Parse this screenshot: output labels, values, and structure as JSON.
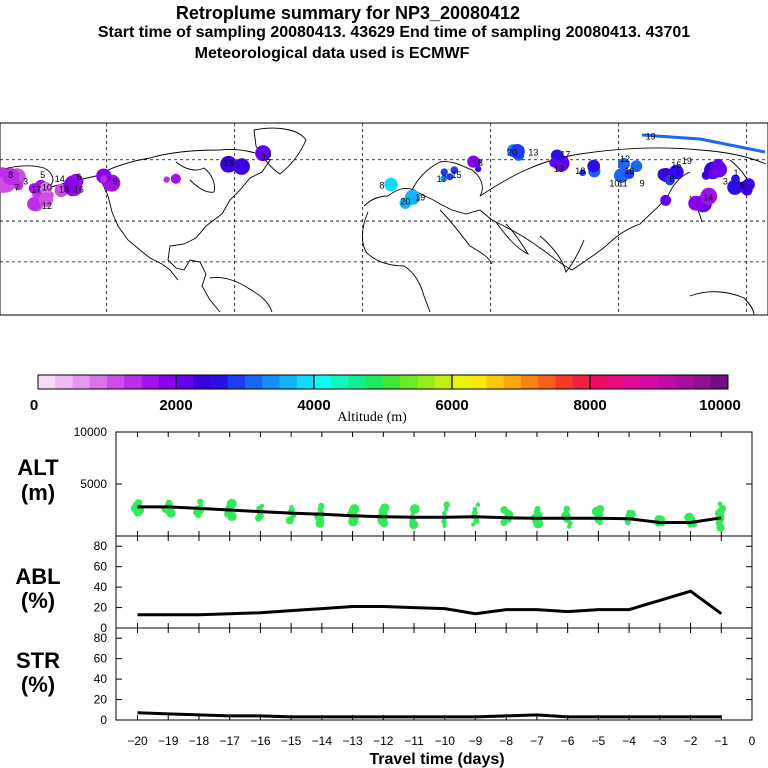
{
  "header": {
    "title": "Retroplume summary for NP3_20080412",
    "subtitle": "Start time of sampling 20080413. 43629     End time of sampling 20080413. 43701",
    "subtitle2": "Meteorological data used is ECMWF"
  },
  "colorbar": {
    "label": "Altitude (m)",
    "ticks": [
      "0",
      "2000",
      "4000",
      "6000",
      "8000",
      "10000"
    ],
    "colors": [
      "#f5d9f7",
      "#eebaf2",
      "#e598ee",
      "#da72ea",
      "#cc4ee6",
      "#bb2de6",
      "#a412ea",
      "#8900ee",
      "#6600ee",
      "#3a00dd",
      "#2a10e6",
      "#1f3cf0",
      "#1a66f5",
      "#168ff9",
      "#12b5fb",
      "#0fdcfd",
      "#0cfdef",
      "#0cf9c0",
      "#10f090",
      "#22ea60",
      "#40e83c",
      "#6ce826",
      "#98ec18",
      "#c4f010",
      "#e8f40a",
      "#fde908",
      "#fdc80a",
      "#fba70e",
      "#f98414",
      "#f7601c",
      "#f53a28",
      "#f02040",
      "#ee0a60",
      "#ea0a80",
      "#e00a98",
      "#d40aa6",
      "#c00ca8",
      "#a80ea0",
      "#8e1090",
      "#701080"
    ]
  },
  "map": {
    "clusters": [
      {
        "lon": -175,
        "lat": 50,
        "alt": 1400,
        "n": 8
      },
      {
        "lon": -165,
        "lat": 46,
        "alt": 1500,
        "n": 5
      },
      {
        "lon": -155,
        "lat": 44,
        "alt": 1200,
        "n": 4
      },
      {
        "lon": -145,
        "lat": 47,
        "alt": 1800,
        "n": 7
      },
      {
        "lon": -160,
        "lat": 38,
        "alt": 1300,
        "n": 3
      },
      {
        "lon": -130,
        "lat": 50,
        "alt": 1600,
        "n": 3
      },
      {
        "lon": -100,
        "lat": 52,
        "alt": 1500,
        "n": 2
      },
      {
        "lon": -70,
        "lat": 55,
        "alt": 2400,
        "n": 2
      },
      {
        "lon": -55,
        "lat": 62,
        "alt": 2100,
        "n": 1
      },
      {
        "lon": 0,
        "lat": 48,
        "alt": 3600,
        "n": 1
      },
      {
        "lon": 10,
        "lat": 40,
        "alt": 3400,
        "n": 2
      },
      {
        "lon": 30,
        "lat": 52,
        "alt": 3000,
        "n": 4
      },
      {
        "lon": 40,
        "lat": 58,
        "alt": 2100,
        "n": 3
      },
      {
        "lon": 60,
        "lat": 63,
        "alt": 3200,
        "n": 3
      },
      {
        "lon": 80,
        "lat": 60,
        "alt": 2300,
        "n": 3
      },
      {
        "lon": 95,
        "lat": 55,
        "alt": 2900,
        "n": 3
      },
      {
        "lon": 115,
        "lat": 55,
        "alt": 3000,
        "n": 4
      },
      {
        "lon": 135,
        "lat": 52,
        "alt": 2600,
        "n": 5
      },
      {
        "lon": 155,
        "lat": 55,
        "alt": 2200,
        "n": 8
      },
      {
        "lon": 168,
        "lat": 48,
        "alt": 2500,
        "n": 6
      },
      {
        "lon": 150,
        "lat": 40,
        "alt": 1900,
        "n": 4
      },
      {
        "lon": 130,
        "lat": 42,
        "alt": 2100,
        "n": 2
      }
    ],
    "number_labels": [
      {
        "text": "8",
        "lon": -175,
        "lat": 51
      },
      {
        "text": "3",
        "lon": -168,
        "lat": 48
      },
      {
        "text": "5",
        "lon": -160,
        "lat": 51
      },
      {
        "text": "17",
        "lon": -163,
        "lat": 44
      },
      {
        "text": "7",
        "lon": -172,
        "lat": 45
      },
      {
        "text": "14",
        "lon": -152,
        "lat": 49
      },
      {
        "text": "18",
        "lon": -150,
        "lat": 44
      },
      {
        "text": "10",
        "lon": -158,
        "lat": 45
      },
      {
        "text": "16",
        "lon": -143,
        "lat": 44
      },
      {
        "text": "6",
        "lon": -143,
        "lat": 50
      },
      {
        "text": "12",
        "lon": -158,
        "lat": 36
      },
      {
        "text": "9",
        "lon": -126,
        "lat": 48
      },
      {
        "text": "13",
        "lon": -73,
        "lat": 57
      },
      {
        "text": "12",
        "lon": -55,
        "lat": 60
      },
      {
        "text": "8",
        "lon": -1,
        "lat": 46
      },
      {
        "text": "20",
        "lon": 10,
        "lat": 38
      },
      {
        "text": "19",
        "lon": 17,
        "lat": 40
      },
      {
        "text": "17",
        "lon": 27,
        "lat": 49
      },
      {
        "text": "15",
        "lon": 34,
        "lat": 51
      },
      {
        "text": "18",
        "lon": 44,
        "lat": 57
      },
      {
        "text": "20",
        "lon": 60,
        "lat": 62
      },
      {
        "text": "13",
        "lon": 70,
        "lat": 62
      },
      {
        "text": "17",
        "lon": 85,
        "lat": 61
      },
      {
        "text": "13",
        "lon": 82,
        "lat": 54
      },
      {
        "text": "18",
        "lon": 92,
        "lat": 53
      },
      {
        "text": "12",
        "lon": 113,
        "lat": 59
      },
      {
        "text": "16",
        "lon": 115,
        "lat": 53
      },
      {
        "text": "10",
        "lon": 108,
        "lat": 47
      },
      {
        "text": "11",
        "lon": 112,
        "lat": 47
      },
      {
        "text": "9",
        "lon": 121,
        "lat": 47
      },
      {
        "text": "8",
        "lon": 135,
        "lat": 49
      },
      {
        "text": "15",
        "lon": 137,
        "lat": 56
      },
      {
        "text": "19",
        "lon": 142,
        "lat": 58
      },
      {
        "text": "3",
        "lon": 160,
        "lat": 48
      },
      {
        "text": "5",
        "lon": 168,
        "lat": 46
      },
      {
        "text": "1",
        "lon": 165,
        "lat": 52
      },
      {
        "text": "14",
        "lon": 152,
        "lat": 40
      },
      {
        "text": "19",
        "lon": 125,
        "lat": 70
      }
    ]
  },
  "chart_data": [
    {
      "type": "line",
      "name": "ALT",
      "label": "ALT",
      "unit": "(m)",
      "yticks": [
        "10000",
        "5000"
      ],
      "ylim": [
        0,
        10000
      ],
      "x": [
        -20,
        -19,
        -18,
        -17,
        -16,
        -15,
        -14,
        -13,
        -12,
        -11,
        -10,
        -9,
        -8,
        -7,
        -6,
        -5,
        -4,
        -3,
        -2,
        -1
      ],
      "values": [
        2800,
        2800,
        2650,
        2500,
        2350,
        2200,
        2100,
        1950,
        1850,
        1800,
        1800,
        1850,
        1750,
        1700,
        1700,
        1700,
        1650,
        1300,
        1300,
        1750
      ],
      "scatter_min": [
        2300,
        2200,
        2000,
        1900,
        1700,
        1500,
        1200,
        1400,
        1200,
        1100,
        1000,
        1100,
        1300,
        1200,
        900,
        1300,
        1300,
        1200,
        1100,
        800
      ],
      "scatter_max": [
        3200,
        3200,
        3300,
        3100,
        2900,
        2800,
        2900,
        2600,
        2700,
        2600,
        3000,
        3000,
        2500,
        2600,
        2600,
        2600,
        2300,
        1600,
        1800,
        3100
      ]
    },
    {
      "type": "line",
      "name": "ABL",
      "label": "ABL",
      "unit": "(%)",
      "yticks": [
        "80",
        "60",
        "40",
        "20",
        "0"
      ],
      "ylim": [
        0,
        90
      ],
      "x": [
        -20,
        -19,
        -18,
        -17,
        -16,
        -15,
        -14,
        -13,
        -12,
        -11,
        -10,
        -9,
        -8,
        -7,
        -6,
        -5,
        -4,
        -3,
        -2,
        -1
      ],
      "values": [
        13,
        13,
        13,
        14,
        15,
        17,
        19,
        21,
        21,
        20,
        19,
        14,
        18,
        18,
        16,
        18,
        18,
        27,
        36,
        14
      ]
    },
    {
      "type": "line",
      "name": "STR",
      "label": "STR",
      "unit": "(%)",
      "yticks": [
        "80",
        "60",
        "40",
        "20",
        "0"
      ],
      "ylim": [
        0,
        90
      ],
      "x": [
        -20,
        -19,
        -18,
        -17,
        -16,
        -15,
        -14,
        -13,
        -12,
        -11,
        -10,
        -9,
        -8,
        -7,
        -6,
        -5,
        -4,
        -3,
        -2,
        -1
      ],
      "values": [
        7,
        6,
        5,
        4,
        4,
        3,
        3,
        3,
        3,
        3,
        3,
        3,
        4,
        5,
        3,
        3,
        3,
        3,
        3,
        3
      ]
    }
  ],
  "xaxis": {
    "label": "Travel time (days)",
    "ticks": [
      "−20",
      "−19",
      "−18",
      "−17",
      "−16",
      "−15",
      "−14",
      "−13",
      "−12",
      "−11",
      "−10",
      "−9",
      "−8",
      "−7",
      "−6",
      "−5",
      "−4",
      "−3",
      "−2",
      "−1",
      "0"
    ],
    "values": [
      -20,
      -19,
      -18,
      -17,
      -16,
      -15,
      -14,
      -13,
      -12,
      -11,
      -10,
      -9,
      -8,
      -7,
      -6,
      -5,
      -4,
      -3,
      -2,
      -1,
      0
    ]
  }
}
